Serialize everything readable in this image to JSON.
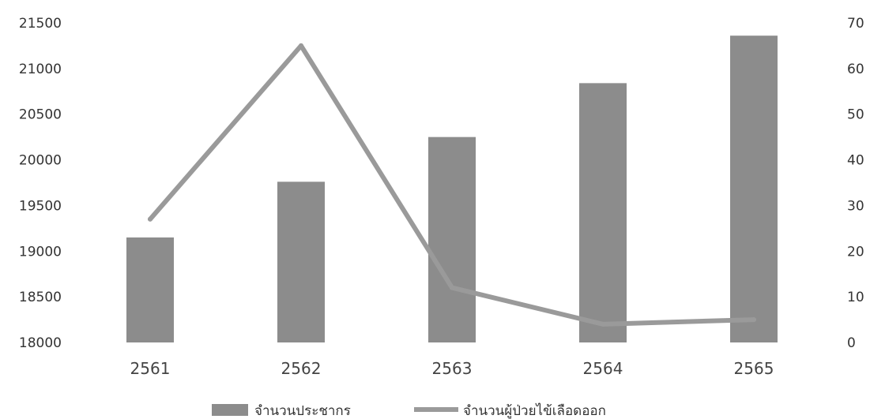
{
  "chart_data": {
    "type": "bar+line",
    "categories": [
      "2561",
      "2562",
      "2563",
      "2564",
      "2565"
    ],
    "series": [
      {
        "name": "จำนวนประชากร",
        "type": "bar",
        "axis": "left",
        "values": [
          19150,
          19760,
          20250,
          20840,
          21360
        ]
      },
      {
        "name": "จำนวนผู้ป่วยไข้เลือดออก",
        "type": "line",
        "axis": "right",
        "values": [
          27,
          65,
          12,
          4,
          5
        ]
      }
    ],
    "y_left": {
      "min": 18000,
      "max": 21500,
      "step": 500
    },
    "y_right": {
      "min": 0,
      "max": 70,
      "step": 10
    },
    "legend_position": "bottom",
    "colors": {
      "bar": "#8c8c8c",
      "line": "#9a9a9a",
      "text": "#333333"
    }
  }
}
